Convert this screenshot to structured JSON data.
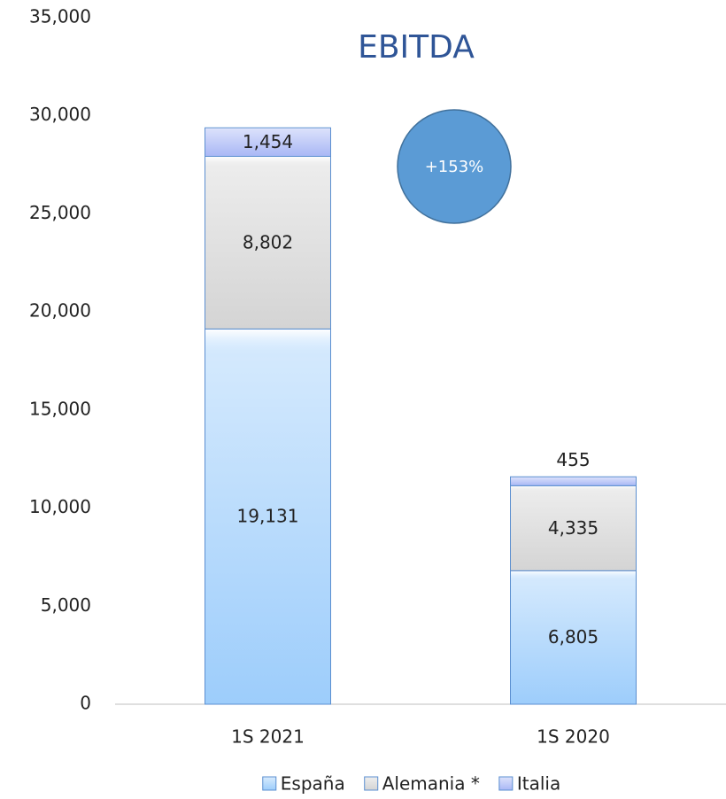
{
  "chart_data": {
    "type": "stacked_bar",
    "title": "EBITDA",
    "categories": [
      "1S 2021",
      "1S 2020"
    ],
    "series": [
      {
        "name": "España",
        "color": "#9dcdfb",
        "values": [
          19131,
          6805
        ],
        "value_labels": [
          "19,131",
          "6,805"
        ]
      },
      {
        "name": "Alemania *",
        "color": "#d4d4d4",
        "values": [
          8802,
          4335
        ],
        "value_labels": [
          "8,802",
          "4,335"
        ]
      },
      {
        "name": "Italia",
        "color": "#a9b7f5",
        "values": [
          1454,
          455
        ],
        "value_labels": [
          "1,454",
          "455"
        ]
      }
    ],
    "ylim": [
      0,
      35000
    ],
    "yticks": [
      0,
      {
        "value": 5000,
        "label": "5,000"
      },
      {
        "value": 10000,
        "label": "10,000"
      },
      {
        "value": 15000,
        "label": "15,000"
      },
      {
        "value": 20000,
        "label": "20,000"
      },
      {
        "value": 25000,
        "label": "25,000"
      },
      {
        "value": 30000,
        "label": "30,000"
      },
      {
        "value": 35000,
        "label": "35,000"
      }
    ],
    "annotation": "+153%",
    "legend": "bottom"
  }
}
